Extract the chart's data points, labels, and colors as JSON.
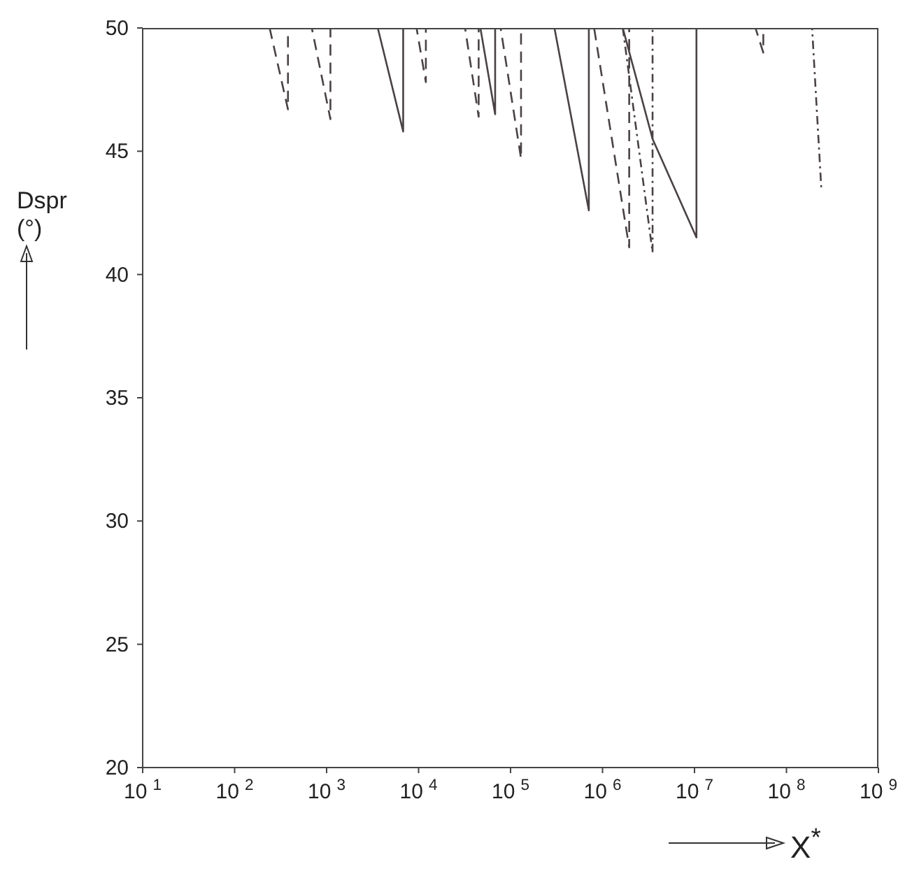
{
  "chart_data": {
    "type": "line",
    "xlabel": "X$^{*}$",
    "ylabel": "Dspr (°)",
    "log": "x",
    "xlim": [
      10,
      1000000000
    ],
    "ylim": [
      20,
      50
    ],
    "xticks": [
      {
        "value": 10,
        "label": "10$^{1}$"
      },
      {
        "value": 100,
        "label": "10$^{2}$"
      },
      {
        "value": 1000,
        "label": "10$^{3}$"
      },
      {
        "value": 10000,
        "label": "10$^{4}$"
      },
      {
        "value": 100000,
        "label": "10$^{5}$"
      },
      {
        "value": 1000000,
        "label": "10$^{6}$"
      },
      {
        "value": 10000000,
        "label": "10$^{7}$"
      },
      {
        "value": 100000000,
        "label": "10$^{8}$"
      },
      {
        "value": 1000000000,
        "label": "10$^{9}$"
      }
    ],
    "yticks": [
      20,
      25,
      30,
      35,
      40,
      45,
      50
    ],
    "marker": "none",
    "series": [
      {
        "color": "#4a4245",
        "line_style": "solid",
        "x": [
          3600,
          6800,
          6800,
          20000,
          47000,
          68000,
          68000,
          150000,
          300000,
          710000,
          710000,
          1660000,
          3500000,
          10500000,
          10500000
        ],
        "values": [
          50,
          45.8,
          50,
          null,
          50,
          46.5,
          50,
          null,
          50,
          42.6,
          50,
          50,
          45.5,
          41.5,
          50
        ]
      },
      {
        "color": "#4a4245",
        "line_style": "dashed",
        "x": [
          240,
          380,
          380,
          690,
          1100,
          1100,
          9500,
          12000,
          12000,
          32000,
          45000,
          45000,
          78000,
          130000,
          130000,
          810000,
          1950000,
          1950000,
          46000000,
          56000000,
          56000000
        ],
        "values": [
          50,
          46.7,
          50,
          50,
          46.3,
          50,
          50,
          47.8,
          50,
          50,
          46.4,
          50,
          50,
          44.7,
          50,
          50,
          41.1,
          50,
          50,
          49,
          50
        ]
      },
      {
        "color": "#4a4245",
        "line_style": "dotted",
        "x": [
          1660000,
          3500000,
          3500000,
          190000000,
          240000000
        ],
        "values": [
          50,
          40.9,
          50,
          50,
          43.4
        ]
      }
    ]
  }
}
